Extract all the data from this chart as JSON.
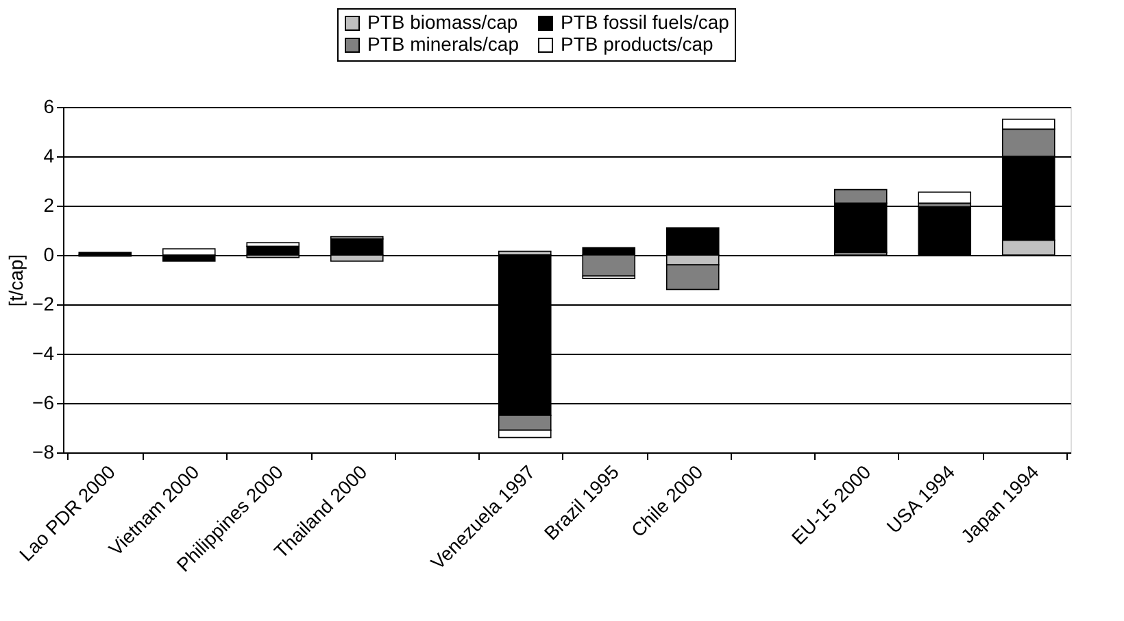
{
  "chart_data": {
    "type": "bar",
    "stacked": true,
    "ylabel": "[t/cap]",
    "categories": [
      "Lao PDR 2000",
      "Vietnam 2000",
      "Philippines 2000",
      "Thailand 2000",
      null,
      "Venezuela 1997",
      "Brazil 1995",
      "Chile 2000",
      null,
      "EU-15 2000",
      "USA 1994",
      "Japan 1994"
    ],
    "series": [
      {
        "name": "PTB biomass/cap",
        "color": "#c0c0c0",
        "values": [
          -0.05,
          0,
          -0.1,
          -0.25,
          null,
          0.15,
          0,
          -0.4,
          null,
          0.1,
          0,
          0.6
        ]
      },
      {
        "name": "PTB fossil fuels/cap",
        "color": "#000000",
        "values": [
          0.1,
          -0.25,
          0.35,
          0.65,
          null,
          -6.5,
          0.3,
          1.1,
          null,
          2.0,
          1.95,
          3.4
        ]
      },
      {
        "name": "PTB minerals/cap",
        "color": "#808080",
        "values": [
          0,
          0,
          0,
          0.1,
          null,
          -0.6,
          -0.85,
          -1.0,
          null,
          0.55,
          0.15,
          1.1
        ]
      },
      {
        "name": "PTB products/cap",
        "color": "#ffffff",
        "values": [
          0,
          0.25,
          0.15,
          0,
          null,
          -0.3,
          -0.1,
          0,
          null,
          0,
          0.45,
          0.4
        ]
      }
    ],
    "ylim": [
      -8,
      6
    ],
    "yticks": [
      -8,
      -6,
      -4,
      -2,
      0,
      2,
      4,
      6
    ],
    "grid": "y",
    "legend": "top"
  }
}
